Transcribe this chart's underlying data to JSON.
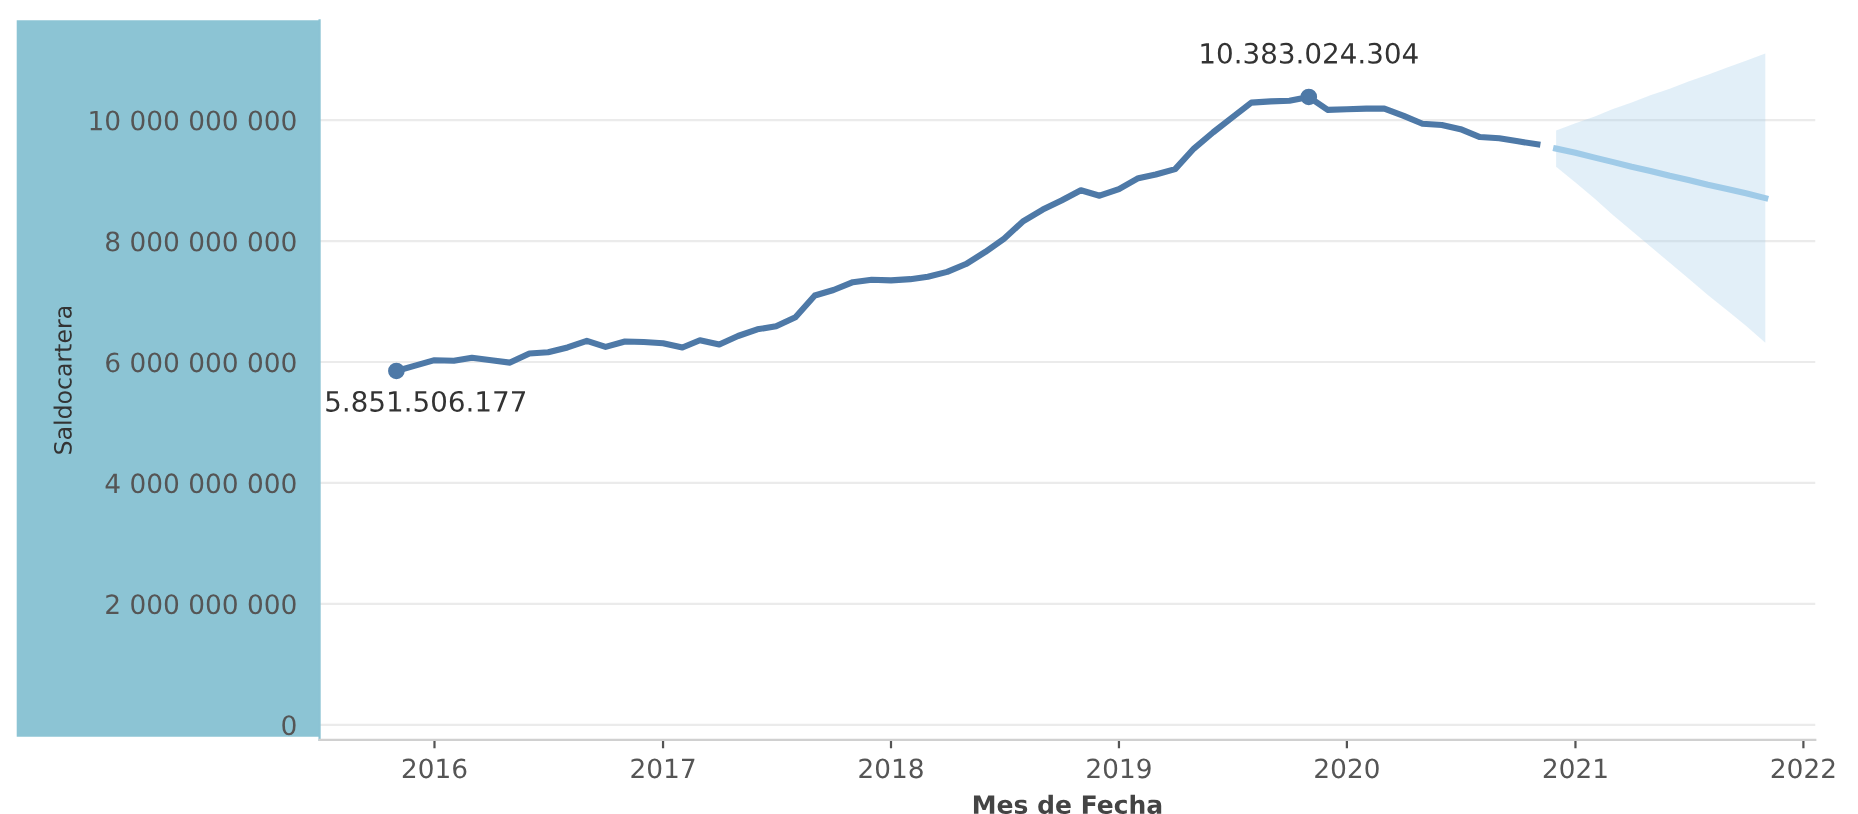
{
  "chart_data": {
    "type": "line",
    "xlabel": "Mes de Fecha",
    "ylabel": "Saldocartera",
    "series": [
      {
        "color": "#4e79a7",
        "x": [
          "2015-11",
          "2015-12",
          "2016-01",
          "2016-02",
          "2016-03",
          "2016-04",
          "2016-05",
          "2016-06",
          "2016-07",
          "2016-08",
          "2016-09",
          "2016-10",
          "2016-11",
          "2016-12",
          "2017-01",
          "2017-02",
          "2017-03",
          "2017-04",
          "2017-05",
          "2017-06",
          "2017-07",
          "2017-08",
          "2017-09",
          "2017-10",
          "2017-11",
          "2017-12",
          "2018-01",
          "2018-02",
          "2018-03",
          "2018-04",
          "2018-05",
          "2018-06",
          "2018-07",
          "2018-08",
          "2018-09",
          "2018-10",
          "2018-11",
          "2018-12",
          "2019-01",
          "2019-02",
          "2019-03",
          "2019-04",
          "2019-05",
          "2019-06",
          "2019-07",
          "2019-08",
          "2019-09",
          "2019-10",
          "2019-11",
          "2019-12",
          "2020-01",
          "2020-02",
          "2020-03",
          "2020-04",
          "2020-05",
          "2020-06",
          "2020-07",
          "2020-08",
          "2020-09",
          "2020-10",
          "2020-11"
        ],
        "values": [
          5851506177,
          5940000000,
          6030000000,
          6020000000,
          6070000000,
          6030000000,
          5990000000,
          6140000000,
          6160000000,
          6240000000,
          6350000000,
          6250000000,
          6340000000,
          6330000000,
          6310000000,
          6240000000,
          6360000000,
          6290000000,
          6430000000,
          6540000000,
          6590000000,
          6740000000,
          7100000000,
          7190000000,
          7320000000,
          7360000000,
          7350000000,
          7370000000,
          7410000000,
          7490000000,
          7620000000,
          7820000000,
          8040000000,
          8330000000,
          8520000000,
          8670000000,
          8840000000,
          8750000000,
          8860000000,
          9040000000,
          9100000000,
          9190000000,
          9530000000,
          9800000000,
          10040000000,
          10290000000,
          10310000000,
          10320000000,
          10383024304,
          10170000000,
          10180000000,
          10190000000,
          10190000000,
          10070000000,
          9940000000,
          9920000000,
          9850000000,
          9720000000,
          9700000000,
          9650000000,
          9600000000
        ]
      },
      {
        "color": "#a0cbe8",
        "x": [
          "2020-12",
          "2021-01",
          "2021-02",
          "2021-03",
          "2021-04",
          "2021-05",
          "2021-06",
          "2021-07",
          "2021-08",
          "2021-09",
          "2021-10",
          "2021-11"
        ],
        "values": [
          9530000000,
          9460000000,
          9380000000,
          9310000000,
          9230000000,
          9160000000,
          9080000000,
          9010000000,
          8930000000,
          8860000000,
          8790000000,
          8710000000
        ],
        "lower": [
          9230000000,
          8970000000,
          8700000000,
          8440000000,
          8170000000,
          7910000000,
          7640000000,
          7380000000,
          7110000000,
          6850000000,
          6600000000,
          6320000000
        ],
        "upper": [
          9830000000,
          9950000000,
          10060000000,
          10180000000,
          10290000000,
          10410000000,
          10520000000,
          10640000000,
          10750000000,
          10870000000,
          10980000000,
          11100000000
        ]
      }
    ],
    "annotations": [
      {
        "text": "5.851.506.177",
        "x": "2015-11",
        "y": 5851506177
      },
      {
        "text": "10.383.024.304",
        "x": "2019-11",
        "y": 10383024304
      }
    ],
    "xlim": [
      "2015-07",
      "2022-01-20"
    ],
    "xticks": [
      {
        "value": "2016",
        "label": "2016"
      },
      {
        "value": "2017",
        "label": "2017"
      },
      {
        "value": "2018",
        "label": "2018"
      },
      {
        "value": "2019",
        "label": "2019"
      },
      {
        "value": "2020",
        "label": "2020"
      },
      {
        "value": "2021",
        "label": "2021"
      },
      {
        "value": "2022",
        "label": "2022"
      }
    ],
    "ylim": [
      -250000000,
      11650000000
    ],
    "yticks": [
      0,
      {
        "value": 2000000000,
        "label": "2 000 000 000"
      },
      {
        "value": 4000000000,
        "label": "4 000 000 000"
      },
      {
        "value": 6000000000,
        "label": "6 000 000 000"
      },
      {
        "value": 8000000000,
        "label": "8 000 000 000"
      },
      {
        "value": 10000000000,
        "label": "10 000 000 000"
      }
    ],
    "grid": "y",
    "line_style": "solid",
    "legend": false
  }
}
